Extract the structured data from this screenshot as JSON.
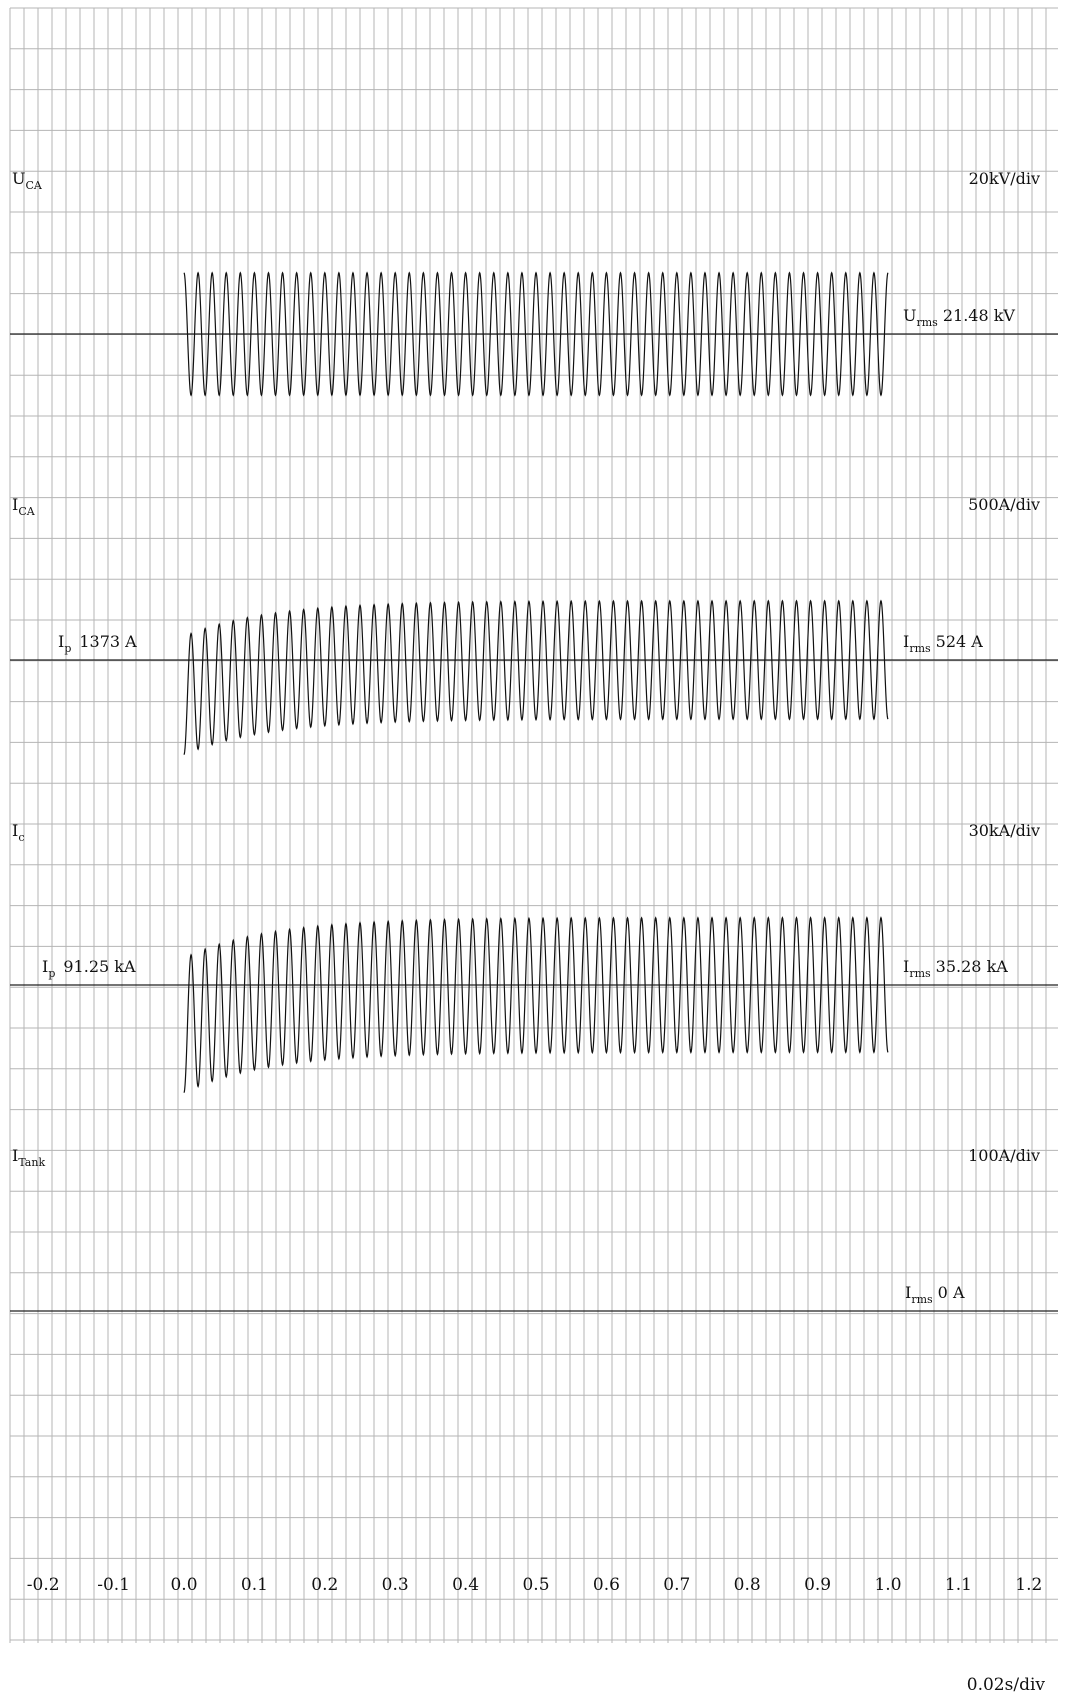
{
  "chart_data": [
    {
      "type": "line",
      "name": "U_CA",
      "channel_label": "U",
      "channel_sub": "CA",
      "scale": "20kV/div",
      "rms_label": "U",
      "rms_sub": "rms",
      "rms_value": "21.48 kV",
      "start_s": 0.0,
      "end_s": 1.0,
      "cycles": 50,
      "amplitude_div": 1.5,
      "decay_ratio": 0.0,
      "baseline_offset_div": 0.0
    },
    {
      "type": "line",
      "name": "I_CA",
      "channel_label": "I",
      "channel_sub": "CA",
      "scale": "500A/div",
      "peak_label": "I",
      "peak_sub": "p",
      "peak_value": "1373 A",
      "rms_label": "I",
      "rms_sub": "rms",
      "rms_value": "524 A",
      "start_s": 0.0,
      "end_s": 1.0,
      "cycles": 50,
      "amplitude_div": 1.45,
      "decay_ratio": 1.3,
      "baseline_offset_div": 0.0
    },
    {
      "type": "line",
      "name": "I_c",
      "channel_label": "I",
      "channel_sub": "c",
      "scale": "30kA/div",
      "peak_label": "I",
      "peak_sub": "p",
      "peak_value": "91.25 kA",
      "rms_label": "I",
      "rms_sub": "rms",
      "rms_value": "35.28 kA",
      "start_s": 0.0,
      "end_s": 1.0,
      "cycles": 50,
      "amplitude_div": 1.65,
      "decay_ratio": 1.3,
      "baseline_offset_div": 0.0
    },
    {
      "type": "line",
      "name": "I_Tank",
      "channel_label": "I",
      "channel_sub": "Tank",
      "scale": "100A/div",
      "rms_label": "I",
      "rms_sub": "rms",
      "rms_value": "0 A",
      "start_s": 0.0,
      "end_s": 1.0,
      "cycles": 0,
      "amplitude_div": 0.0,
      "decay_ratio": 0.0,
      "baseline_offset_div": 0.0
    }
  ],
  "x_axis": {
    "ticks": [
      "-0.2",
      "-0.1",
      "0.0",
      "0.1",
      "0.2",
      "0.3",
      "0.4",
      "0.5",
      "0.6",
      "0.7",
      "0.8",
      "0.9",
      "1.0",
      "1.1",
      "1.2"
    ],
    "tick_values": [
      -0.2,
      -0.1,
      0.0,
      0.1,
      0.2,
      0.3,
      0.4,
      0.5,
      0.6,
      0.7,
      0.8,
      0.9,
      1.0,
      1.1,
      1.2
    ],
    "xlim": [
      -0.24,
      1.26
    ],
    "time_scale": "0.02s/div"
  },
  "grid": true
}
